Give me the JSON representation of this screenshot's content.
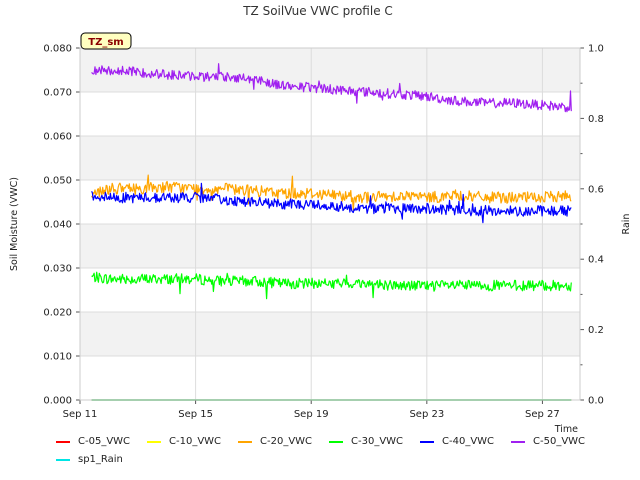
{
  "chart_data": {
    "type": "line",
    "title": "TZ SoilVue VWC profile C",
    "badge": "TZ_sm",
    "xlabel": "Time",
    "ylabel": "Soil Moisture (VWC)",
    "y2label": "Rain",
    "x_ticks": [
      "Sep 11",
      "Sep 15",
      "Sep 19",
      "Sep 23",
      "Sep 27"
    ],
    "x_tick_days": [
      11,
      15,
      19,
      23,
      27
    ],
    "xlim": [
      11,
      28.3
    ],
    "ylim": [
      0.0,
      0.08
    ],
    "y_ticks": [
      "0.000",
      "0.010",
      "0.020",
      "0.030",
      "0.040",
      "0.050",
      "0.060",
      "0.070",
      "0.080"
    ],
    "y2lim": [
      0.0,
      1.0
    ],
    "y2_ticks": [
      "0.0",
      "0.2",
      "0.4",
      "0.6",
      "0.8",
      "1.0"
    ],
    "grid": true,
    "legend_position": "bottom",
    "series": [
      {
        "name": "C-05_VWC",
        "color": "#ff0000",
        "x": [
          11.4,
          28.0
        ],
        "values": [
          0.0,
          0.0
        ]
      },
      {
        "name": "C-10_VWC",
        "color": "#ffff00",
        "x": [
          11.4,
          28.0
        ],
        "values": [
          0.0,
          0.0
        ]
      },
      {
        "name": "C-20_VWC",
        "color": "#ffa500",
        "x": [
          11.4,
          12.0,
          13.0,
          14.0,
          15.0,
          16.0,
          17.0,
          18.0,
          19.0,
          20.0,
          21.0,
          22.0,
          23.0,
          24.0,
          25.0,
          26.0,
          27.0,
          28.0
        ],
        "values": [
          0.047,
          0.048,
          0.048,
          0.0485,
          0.048,
          0.048,
          0.0475,
          0.047,
          0.047,
          0.0465,
          0.046,
          0.0465,
          0.046,
          0.0465,
          0.046,
          0.046,
          0.046,
          0.0465
        ]
      },
      {
        "name": "C-30_VWC",
        "color": "#00ff00",
        "x": [
          11.4,
          12.0,
          13.0,
          14.0,
          15.0,
          16.0,
          17.0,
          18.0,
          19.0,
          20.0,
          21.0,
          22.0,
          23.0,
          24.0,
          25.0,
          26.0,
          27.0,
          28.0
        ],
        "values": [
          0.028,
          0.0275,
          0.0275,
          0.0275,
          0.0275,
          0.027,
          0.027,
          0.0265,
          0.0265,
          0.0265,
          0.0265,
          0.026,
          0.026,
          0.026,
          0.026,
          0.026,
          0.026,
          0.026
        ]
      },
      {
        "name": "C-40_VWC",
        "color": "#0000ff",
        "x": [
          11.4,
          12.0,
          13.0,
          14.0,
          15.0,
          16.0,
          17.0,
          18.0,
          19.0,
          20.0,
          21.0,
          22.0,
          23.0,
          24.0,
          25.0,
          26.0,
          27.0,
          28.0
        ],
        "values": [
          0.0465,
          0.046,
          0.046,
          0.046,
          0.046,
          0.0455,
          0.045,
          0.0445,
          0.0445,
          0.044,
          0.0435,
          0.0435,
          0.0435,
          0.043,
          0.043,
          0.043,
          0.043,
          0.043
        ]
      },
      {
        "name": "C-50_VWC",
        "color": "#a020f0",
        "x": [
          11.4,
          12.0,
          13.0,
          14.0,
          15.0,
          16.0,
          17.0,
          18.0,
          19.0,
          20.0,
          21.0,
          22.0,
          23.0,
          24.0,
          25.0,
          26.0,
          27.0,
          28.0
        ],
        "values": [
          0.075,
          0.075,
          0.0745,
          0.074,
          0.0735,
          0.0735,
          0.073,
          0.0715,
          0.071,
          0.0705,
          0.07,
          0.0695,
          0.069,
          0.068,
          0.0675,
          0.0675,
          0.067,
          0.0665
        ]
      },
      {
        "name": "sp1_Rain",
        "color": "#00e5e5",
        "axis": "y2",
        "x": [
          11.4,
          28.0
        ],
        "values": [
          0.0,
          0.0
        ]
      }
    ]
  }
}
